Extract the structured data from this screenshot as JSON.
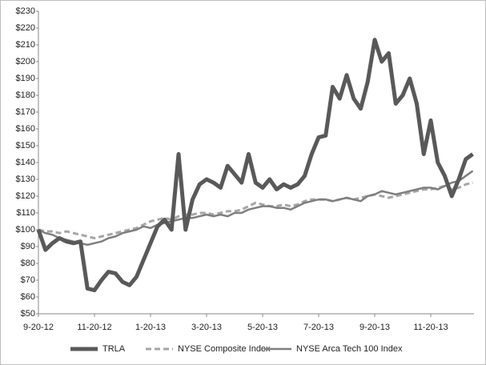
{
  "chart_data": {
    "type": "line",
    "categories": [
      "9-20-12",
      null,
      null,
      null,
      null,
      null,
      null,
      null,
      "11-20-12",
      null,
      null,
      null,
      null,
      null,
      null,
      null,
      "1-20-13",
      null,
      null,
      null,
      null,
      null,
      null,
      null,
      "3-20-13",
      null,
      null,
      null,
      null,
      null,
      null,
      null,
      "5-20-13",
      null,
      null,
      null,
      null,
      null,
      null,
      null,
      "7-20-13",
      null,
      null,
      null,
      null,
      null,
      null,
      null,
      "9-20-13",
      null,
      null,
      null,
      null,
      null,
      null,
      null,
      "11-20-13",
      null,
      null,
      null,
      null,
      null,
      null
    ],
    "series": [
      {
        "name": "TRLA",
        "color": "#595959",
        "width": 5,
        "dashed": false,
        "values": [
          100,
          88,
          92,
          95,
          93,
          92,
          93,
          65,
          64,
          70,
          75,
          74,
          69,
          67,
          72,
          82,
          92,
          102,
          106,
          100,
          145,
          100,
          118,
          127,
          130,
          128,
          125,
          138,
          133,
          128,
          145,
          128,
          125,
          130,
          124,
          127,
          125,
          127,
          132,
          145,
          155,
          156,
          185,
          178,
          192,
          178,
          172,
          188,
          213,
          200,
          205,
          175,
          180,
          190,
          175,
          145,
          165,
          140,
          132,
          120,
          130,
          142,
          145
        ]
      },
      {
        "name": "NYSE Composite Index",
        "color": "#a6a6a6",
        "width": 3,
        "dashed": true,
        "values": [
          100,
          99,
          99,
          98,
          99,
          98,
          97,
          96,
          95,
          96,
          97,
          98,
          99,
          100,
          101,
          103,
          105,
          106,
          107,
          106,
          108,
          109,
          109,
          110,
          110,
          109,
          110,
          111,
          111,
          112,
          114,
          116,
          115,
          114,
          114,
          115,
          114,
          115,
          117,
          118,
          118,
          118,
          117,
          118,
          119,
          118,
          119,
          120,
          121,
          120,
          119,
          120,
          121,
          122,
          123,
          124,
          124,
          125,
          126,
          124,
          125,
          127,
          128
        ]
      },
      {
        "name": "NYSE Arca Tech 100 Index",
        "color": "#7f7f7f",
        "width": 2.5,
        "dashed": false,
        "values": [
          100,
          98,
          97,
          95,
          94,
          93,
          92,
          91,
          92,
          93,
          95,
          96,
          98,
          99,
          100,
          102,
          101,
          103,
          104,
          105,
          106,
          107,
          107,
          108,
          109,
          108,
          109,
          108,
          110,
          110,
          112,
          113,
          114,
          114,
          113,
          113,
          112,
          114,
          116,
          117,
          118,
          118,
          117,
          118,
          119,
          118,
          117,
          120,
          121,
          123,
          122,
          121,
          122,
          123,
          124,
          125,
          125,
          124,
          126,
          128,
          129,
          132,
          135
        ]
      }
    ],
    "ylim": [
      50,
      230
    ],
    "yticks": [
      {
        "value": 50,
        "label": "$50"
      },
      {
        "value": 60,
        "label": "$60"
      },
      {
        "value": 70,
        "label": "$70"
      },
      {
        "value": 80,
        "label": "$80"
      },
      {
        "value": 90,
        "label": "$90"
      },
      {
        "value": 100,
        "label": "$100"
      },
      {
        "value": 110,
        "label": "$110"
      },
      {
        "value": 120,
        "label": "$120"
      },
      {
        "value": 130,
        "label": "$130"
      },
      {
        "value": 140,
        "label": "$140"
      },
      {
        "value": 150,
        "label": "$150"
      },
      {
        "value": 160,
        "label": "$160"
      },
      {
        "value": 170,
        "label": "$170"
      },
      {
        "value": 180,
        "label": "$180"
      },
      {
        "value": 190,
        "label": "$190"
      },
      {
        "value": 200,
        "label": "$200"
      },
      {
        "value": 210,
        "label": "$210"
      },
      {
        "value": 220,
        "label": "$220"
      },
      {
        "value": 230,
        "label": "$230"
      }
    ],
    "grid": false,
    "legend": "bottom"
  }
}
